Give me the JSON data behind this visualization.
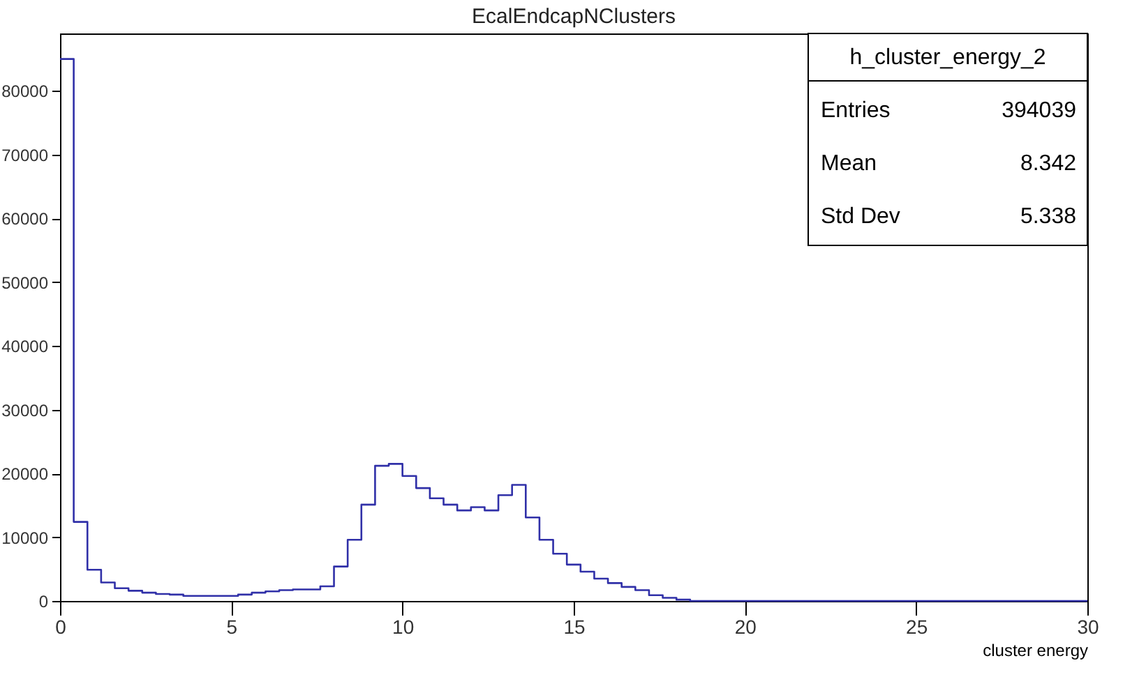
{
  "chart_data": {
    "type": "histogram",
    "title": "EcalEndcapNClusters",
    "xlabel": "cluster energy",
    "bins": [
      0,
      0.4,
      0.8,
      1.2,
      1.6,
      2.0,
      2.4,
      2.8,
      3.2,
      3.6,
      4.0,
      4.4,
      4.8,
      5.2,
      5.6,
      6.0,
      6.4,
      6.8,
      7.2,
      7.6,
      8.0,
      8.4,
      8.8,
      9.2,
      9.6,
      10.0,
      10.4,
      10.8,
      11.2,
      11.6,
      12.0,
      12.4,
      12.8,
      13.2,
      13.6,
      14.0,
      14.4,
      14.8,
      15.2,
      15.6,
      16.0,
      16.4,
      16.8,
      17.2,
      17.6,
      18.0,
      18.4,
      18.8,
      19.2,
      19.6,
      20.0,
      20.4,
      20.8,
      21.2,
      21.6,
      22.0,
      22.4,
      22.8,
      23.2,
      23.6,
      24.0,
      24.4,
      24.8,
      25.2,
      25.6,
      26.0,
      26.4,
      26.8,
      27.2,
      27.6,
      28.0,
      28.4,
      28.8,
      29.2,
      29.6,
      30.0
    ],
    "values": [
      85000,
      12400,
      4900,
      2900,
      2000,
      1600,
      1300,
      1100,
      1000,
      800,
      800,
      800,
      800,
      1000,
      1300,
      1500,
      1700,
      1800,
      1800,
      2300,
      5400,
      9600,
      15100,
      21200,
      21500,
      19600,
      17700,
      16100,
      15100,
      14200,
      14700,
      14200,
      16600,
      18200,
      13100,
      9600,
      7400,
      5700,
      4600,
      3500,
      2800,
      2200,
      1700,
      900,
      500,
      200,
      0,
      0,
      0,
      0,
      0,
      0,
      0,
      0,
      0,
      0,
      0,
      0,
      0,
      0,
      0,
      0,
      0,
      0,
      0,
      0,
      0,
      0,
      0,
      0,
      0,
      0,
      0,
      0,
      0
    ],
    "color": "#3030a8",
    "xlim": [
      0,
      30
    ],
    "xticks": [
      0,
      5,
      10,
      15,
      20,
      25,
      30
    ],
    "ylim": [
      0,
      89000
    ],
    "yticks": [
      0,
      10000,
      20000,
      30000,
      40000,
      50000,
      60000,
      70000,
      80000
    ],
    "grid": false,
    "annotations": [
      "h_cluster_energy_2",
      "Entries",
      "394039",
      "Mean",
      "8.342",
      "Std Dev",
      "5.338"
    ]
  }
}
